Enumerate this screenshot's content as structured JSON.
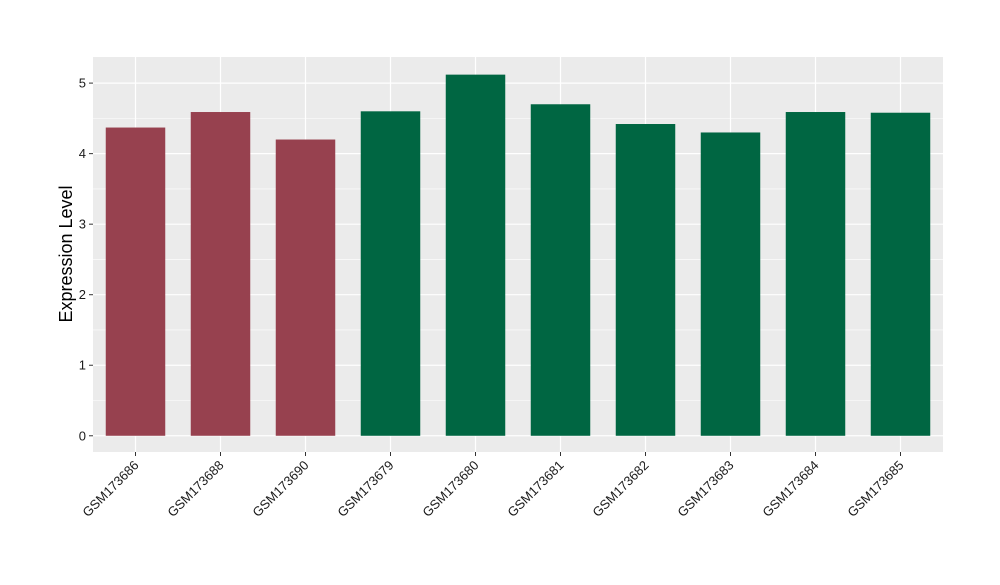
{
  "chart_data": {
    "type": "bar",
    "title": "",
    "xlabel": "",
    "ylabel": "Expression Level",
    "ylim": [
      -0.23,
      5.37
    ],
    "yticks": [
      0,
      1,
      2,
      3,
      4,
      5
    ],
    "y_tick_labels": [
      "0",
      "1",
      "2",
      "3",
      "4",
      "5"
    ],
    "grid": true,
    "legend": "none",
    "panel_background": "#ebebeb",
    "grid_color": "#ffffff",
    "categories": [
      "GSM173686",
      "GSM173688",
      "GSM173690",
      "GSM173679",
      "GSM173680",
      "GSM173681",
      "GSM173682",
      "GSM173683",
      "GSM173684",
      "GSM173685"
    ],
    "values": [
      4.37,
      4.59,
      4.2,
      4.6,
      5.12,
      4.7,
      4.42,
      4.3,
      4.59,
      4.58
    ],
    "bar_colors": [
      "#97414f",
      "#97414f",
      "#97414f",
      "#006642",
      "#006642",
      "#006642",
      "#006642",
      "#006642",
      "#006642",
      "#006642"
    ]
  }
}
